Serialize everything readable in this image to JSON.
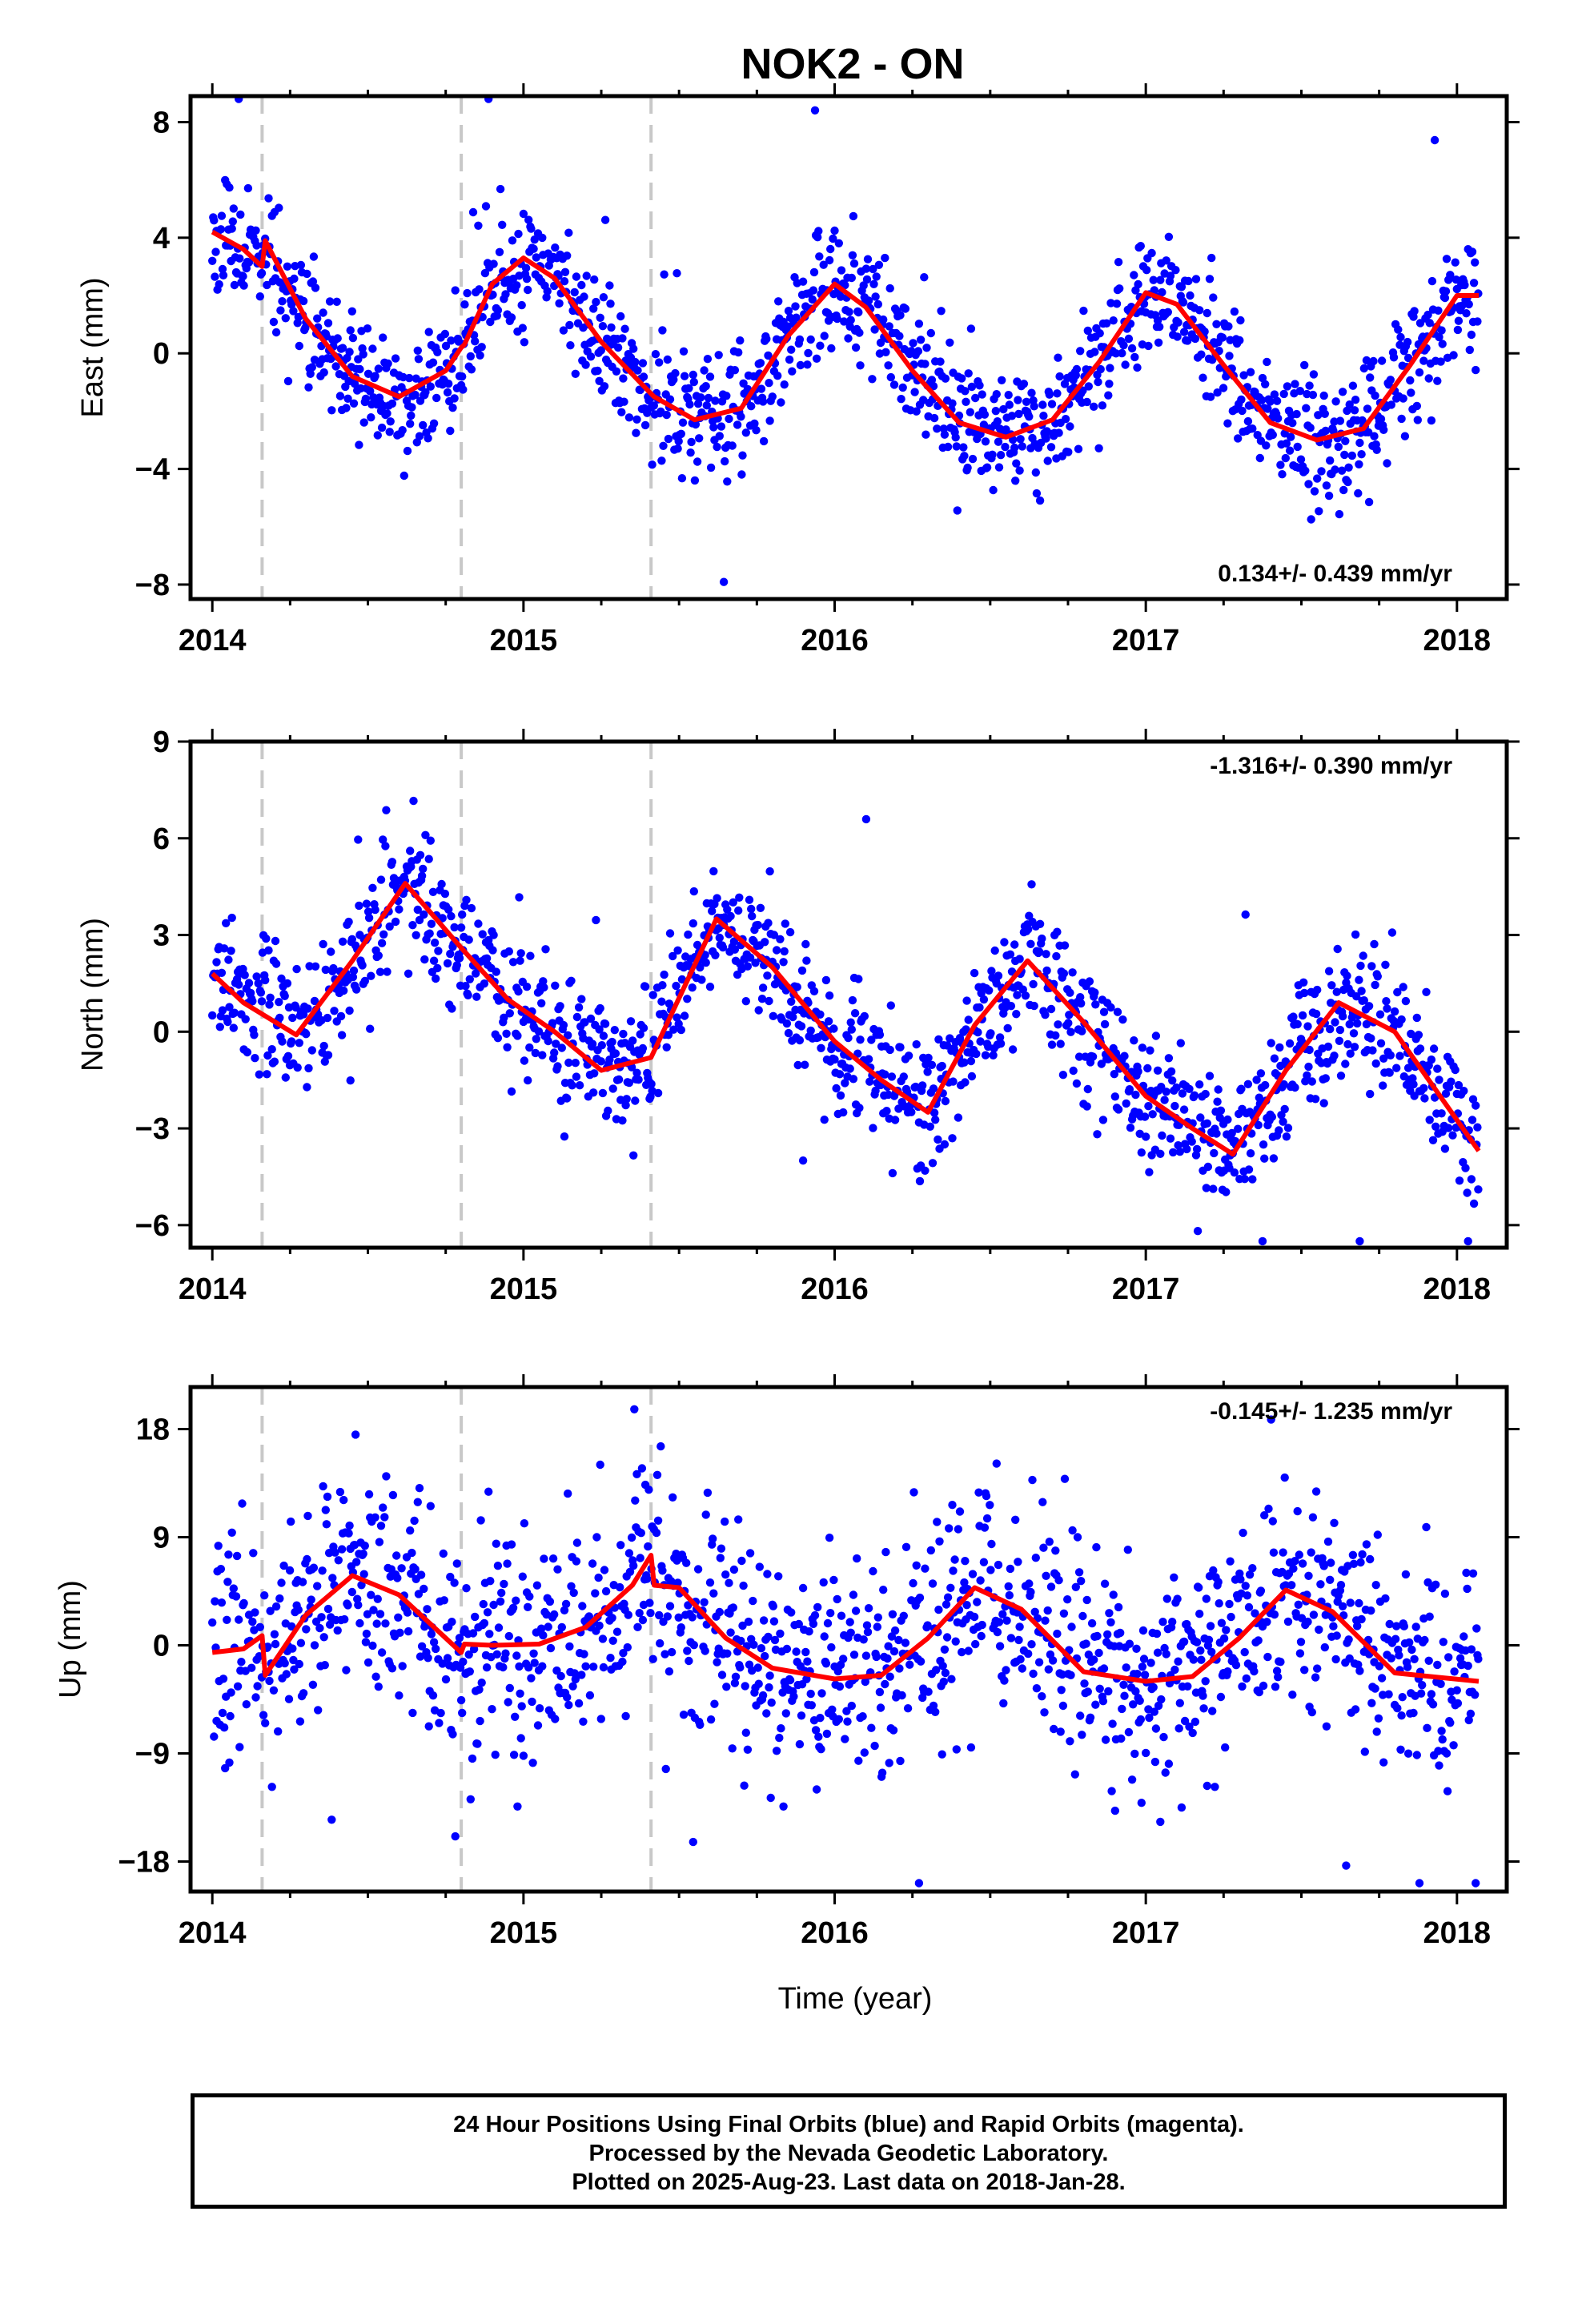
{
  "chart_data": [
    {
      "type": "scatter",
      "title": "NOK2 - ON",
      "ylabel": "East (mm)",
      "xlabel": "",
      "rate": "0.134+/- 0.439 mm/yr",
      "rate_position": "bottom-right",
      "xlim": [
        2013.93,
        2018.16
      ],
      "ylim": [
        -8.5,
        8.9
      ],
      "xticks": [
        2014,
        2015,
        2016,
        2017,
        2018
      ],
      "yticks": [
        8,
        4,
        0,
        -4,
        -8
      ],
      "ytick_labels": [
        "8",
        "4",
        "0",
        "−4",
        "−8"
      ],
      "breaks": [
        2014.16,
        2014.8,
        2015.41
      ],
      "model": {
        "type": "line",
        "color": "#ff0000",
        "x": [
          2014.0,
          2014.1,
          2014.16,
          2014.17,
          2014.3,
          2014.45,
          2014.6,
          2014.75,
          2014.8,
          2014.81,
          2014.9,
          2015.0,
          2015.1,
          2015.25,
          2015.41,
          2015.42,
          2015.55,
          2015.7,
          2015.85,
          2016.0,
          2016.1,
          2016.25,
          2016.4,
          2016.55,
          2016.7,
          2016.85,
          2017.0,
          2017.1,
          2017.25,
          2017.4,
          2017.55,
          2017.7,
          2017.85,
          2018.0,
          2018.07
        ],
        "y": [
          4.2,
          3.6,
          3.0,
          3.9,
          1.2,
          -0.8,
          -1.5,
          -0.6,
          0.2,
          0.3,
          2.4,
          3.3,
          2.6,
          0.4,
          -1.4,
          -1.5,
          -2.3,
          -1.9,
          0.6,
          2.4,
          1.6,
          -0.6,
          -2.4,
          -2.9,
          -2.3,
          -0.3,
          2.1,
          1.7,
          -0.4,
          -2.4,
          -3.0,
          -2.6,
          -0.4,
          2.0,
          2.0
        ]
      },
      "scatter": {
        "color": "#0000ff",
        "amplitude": 3.1,
        "phase": 0.0,
        "trend": -0.45,
        "offset": 0.3,
        "noise": 1.05,
        "outlier_rate": 0.02,
        "outlier_scale": 3.2,
        "ymin": -8.3,
        "ymax": 8.8,
        "seed": 11
      }
    },
    {
      "type": "scatter",
      "ylabel": "North (mm)",
      "xlabel": "",
      "rate": "-1.316+/- 0.390 mm/yr",
      "rate_position": "top-right",
      "xlim": [
        2013.93,
        2018.16
      ],
      "ylim": [
        -6.7,
        9.0
      ],
      "xticks": [
        2014,
        2015,
        2016,
        2017,
        2018
      ],
      "yticks": [
        9,
        6,
        3,
        0,
        -3,
        -6
      ],
      "ytick_labels": [
        "9",
        "6",
        "3",
        "0",
        "−3",
        "−6"
      ],
      "breaks": [
        2014.16,
        2014.8,
        2015.41
      ],
      "model": {
        "type": "line",
        "color": "#ff0000",
        "x": [
          2014.0,
          2014.1,
          2014.27,
          2014.45,
          2014.62,
          2014.8,
          2014.95,
          2015.1,
          2015.25,
          2015.41,
          2015.62,
          2015.8,
          2016.0,
          2016.15,
          2016.3,
          2016.45,
          2016.62,
          2016.8,
          2017.0,
          2017.15,
          2017.28,
          2017.45,
          2017.62,
          2017.8,
          2018.07
        ],
        "y": [
          1.8,
          0.9,
          -0.1,
          2.2,
          4.6,
          2.6,
          1.0,
          0.0,
          -1.2,
          -0.8,
          3.5,
          2.0,
          -0.3,
          -1.5,
          -2.5,
          0.2,
          2.2,
          0.3,
          -2.0,
          -3.0,
          -3.8,
          -1.2,
          0.9,
          0.0,
          -3.7
        ]
      },
      "scatter": {
        "color": "#0000ff",
        "amplitude": 2.6,
        "phase": 2.1,
        "trend": -1.3,
        "offset": 0.8,
        "noise": 1.0,
        "outlier_rate": 0.02,
        "outlier_scale": 3.0,
        "ymin": -6.5,
        "ymax": 8.9,
        "seed": 23
      }
    },
    {
      "type": "scatter",
      "ylabel": "Up (mm)",
      "xlabel": "Time (year)",
      "rate": "-0.145+/- 1.235 mm/yr",
      "rate_position": "top-right",
      "xlim": [
        2013.93,
        2018.16
      ],
      "ylim": [
        -20.5,
        21.5
      ],
      "xticks": [
        2014,
        2015,
        2016,
        2017,
        2018
      ],
      "yticks": [
        18,
        9,
        0,
        -9,
        -18
      ],
      "ytick_labels": [
        "18",
        "9",
        "0",
        "−9",
        "−18"
      ],
      "breaks": [
        2014.16,
        2014.8,
        2015.41
      ],
      "model": {
        "type": "line",
        "color": "#ff0000",
        "x": [
          2014.0,
          2014.1,
          2014.16,
          2014.17,
          2014.3,
          2014.45,
          2014.6,
          2014.75,
          2014.8,
          2014.81,
          2014.9,
          2015.05,
          2015.2,
          2015.35,
          2015.41,
          2015.42,
          2015.5,
          2015.65,
          2015.8,
          2016.0,
          2016.15,
          2016.3,
          2016.45,
          2016.6,
          2016.8,
          2017.0,
          2017.15,
          2017.3,
          2017.45,
          2017.6,
          2017.8,
          2018.07
        ],
        "y": [
          -0.6,
          -0.3,
          0.8,
          -2.5,
          2.5,
          5.8,
          4.2,
          0.6,
          -0.6,
          0.1,
          0.0,
          0.1,
          1.5,
          5.0,
          7.5,
          5.0,
          4.8,
          0.6,
          -1.9,
          -2.8,
          -2.5,
          0.6,
          4.8,
          3.0,
          -2.2,
          -3.0,
          -2.6,
          0.6,
          4.6,
          2.8,
          -2.3,
          -3.0
        ]
      },
      "scatter": {
        "color": "#0000ff",
        "amplitude": 4.4,
        "phase": 2.0,
        "trend": 0.0,
        "offset": 0.3,
        "noise": 4.6,
        "outlier_rate": 0.02,
        "outlier_scale": 2.4,
        "ymin": -19.8,
        "ymax": 20.5,
        "seed": 37
      }
    }
  ],
  "footer": {
    "line1": "24 Hour Positions Using Final Orbits (blue) and Rapid Orbits (magenta).",
    "line2": "Processed by the Nevada Geodetic Laboratory.",
    "line3": "Plotted on 2025-Aug-23. Last data on 2018-Jan-28."
  }
}
